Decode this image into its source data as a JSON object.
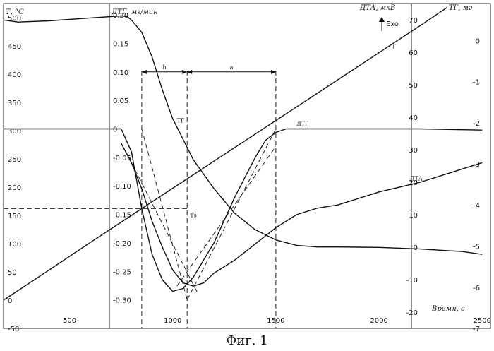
{
  "chart_data": {
    "type": "line",
    "axes": {
      "T": {
        "title": "Т, °С",
        "range": [
          -50,
          525
        ],
        "ticks": [
          -50,
          0,
          50,
          100,
          150,
          200,
          250,
          300,
          350,
          400,
          450,
          500
        ]
      },
      "DTG": {
        "title": "ДТГ, мг/мин",
        "range": [
          -0.35,
          0.22
        ],
        "ticks": [
          "0.20",
          "0.15",
          "0.10",
          "0.05",
          "0",
          "-0.05",
          "-0.10",
          "-0.15",
          "-0.20",
          "-0.25",
          "-0.30"
        ]
      },
      "DTA": {
        "title": "ДТА, мкВ",
        "range": [
          -25,
          75
        ],
        "ticks": [
          70,
          60,
          50,
          40,
          30,
          20,
          10,
          0,
          -10,
          -20
        ]
      },
      "TG": {
        "title": "ТГ, мг",
        "range": [
          -7,
          0.9
        ],
        "ticks": [
          "0",
          "-1",
          "-2",
          "-3",
          "-4",
          "-5",
          "-6",
          "-7"
        ]
      },
      "time": {
        "title": "Время, с",
        "range": [
          180,
          2540
        ],
        "ticks": [
          500,
          1000,
          1500,
          2000,
          2500
        ]
      }
    },
    "exo_label": "Exo",
    "series": [
      {
        "name": "Т",
        "axis": "T",
        "points": [
          [
            180,
            0
          ],
          [
            400,
            53
          ],
          [
            600,
            102
          ],
          [
            800,
            150
          ],
          [
            1000,
            198
          ],
          [
            1200,
            246
          ],
          [
            1400,
            294
          ],
          [
            1600,
            342
          ],
          [
            1800,
            390
          ],
          [
            2000,
            438
          ],
          [
            2200,
            486
          ],
          [
            2330,
            518
          ]
        ]
      },
      {
        "name": "ТГ",
        "axis": "TG",
        "points": [
          [
            180,
            0.5
          ],
          [
            250,
            0.45
          ],
          [
            400,
            0.48
          ],
          [
            600,
            0.55
          ],
          [
            750,
            0.6
          ],
          [
            780,
            0.58
          ],
          [
            800,
            0.5
          ],
          [
            850,
            0.2
          ],
          [
            900,
            -0.4
          ],
          [
            950,
            -1.2
          ],
          [
            1000,
            -1.9
          ],
          [
            1050,
            -2.4
          ],
          [
            1100,
            -2.9
          ],
          [
            1200,
            -3.6
          ],
          [
            1300,
            -4.2
          ],
          [
            1400,
            -4.6
          ],
          [
            1500,
            -4.85
          ],
          [
            1600,
            -4.98
          ],
          [
            1700,
            -5.02
          ],
          [
            1800,
            -5.02
          ],
          [
            2000,
            -5.03
          ],
          [
            2200,
            -5.07
          ],
          [
            2400,
            -5.13
          ],
          [
            2500,
            -5.2
          ]
        ]
      },
      {
        "name": "ДТГ",
        "axis": "DTG",
        "points": [
          [
            180,
            0
          ],
          [
            600,
            0
          ],
          [
            750,
            0
          ],
          [
            800,
            -0.04
          ],
          [
            850,
            -0.14
          ],
          [
            900,
            -0.22
          ],
          [
            950,
            -0.265
          ],
          [
            1000,
            -0.285
          ],
          [
            1050,
            -0.28
          ],
          [
            1100,
            -0.26
          ],
          [
            1200,
            -0.2
          ],
          [
            1300,
            -0.12
          ],
          [
            1400,
            -0.05
          ],
          [
            1450,
            -0.02
          ],
          [
            1500,
            -0.006
          ],
          [
            1550,
            0
          ],
          [
            1800,
            0
          ],
          [
            2200,
            0
          ],
          [
            2500,
            -0.002
          ]
        ]
      },
      {
        "name": "ДТА",
        "axis": "DTA",
        "points": [
          [
            750,
            32
          ],
          [
            800,
            26
          ],
          [
            850,
            18
          ],
          [
            900,
            8
          ],
          [
            950,
            0
          ],
          [
            1000,
            -7
          ],
          [
            1050,
            -11
          ],
          [
            1100,
            -12
          ],
          [
            1150,
            -11
          ],
          [
            1200,
            -8
          ],
          [
            1300,
            -4
          ],
          [
            1400,
            1
          ],
          [
            1500,
            6
          ],
          [
            1600,
            10
          ],
          [
            1700,
            12
          ],
          [
            1800,
            13
          ],
          [
            1900,
            15
          ],
          [
            2000,
            17
          ],
          [
            2100,
            18.5
          ],
          [
            2200,
            20
          ],
          [
            2300,
            22
          ],
          [
            2400,
            24
          ],
          [
            2500,
            26
          ]
        ]
      }
    ],
    "annotations": [
      {
        "label": "b",
        "from": 850,
        "to": 1070,
        "axis": "DTG",
        "y": 0.1
      },
      {
        "label": "a",
        "from": 1070,
        "to": 1500,
        "axis": "DTG",
        "y": 0.1
      },
      {
        "label": "Тs",
        "x": 1070,
        "axis": "T",
        "y": 162
      }
    ],
    "guides": [
      {
        "kind": "tangent",
        "axis": "DTG",
        "from": [
          850,
          0
        ],
        "to": [
          1070,
          -0.3
        ]
      },
      {
        "kind": "tangent",
        "axis": "DTG",
        "from": [
          1070,
          -0.3
        ],
        "to": [
          1500,
          0
        ]
      },
      {
        "kind": "tangent",
        "axis": "DTA",
        "from": [
          800,
          26
        ],
        "to": [
          1120,
          -14
        ]
      },
      {
        "kind": "tangent",
        "axis": "DTA",
        "from": [
          1020,
          -12
        ],
        "to": [
          1500,
          31
        ]
      },
      {
        "kind": "vline",
        "x": 850
      },
      {
        "kind": "vline",
        "x": 1070
      },
      {
        "kind": "vline",
        "x": 1500
      },
      {
        "kind": "hline",
        "axis": "T",
        "y": 162
      }
    ]
  },
  "caption": "Фиг. 1"
}
